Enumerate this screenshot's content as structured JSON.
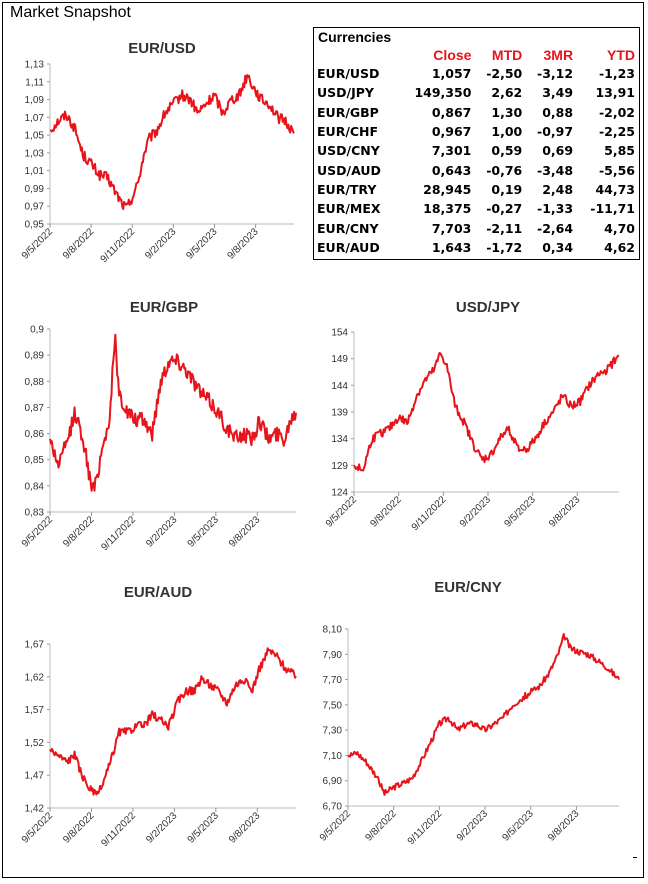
{
  "page": {
    "title": "Market Snapshot"
  },
  "table": {
    "title": "Currencies",
    "headers": [
      "Close",
      "MTD",
      "3MR",
      "YTD"
    ],
    "rows": [
      {
        "pair": "EUR/USD",
        "close": "1,057",
        "mtd": "-2,50",
        "r3m": "-3,12",
        "ytd": "-1,23"
      },
      {
        "pair": "USD/JPY",
        "close": "149,350",
        "mtd": "2,62",
        "r3m": "3,49",
        "ytd": "13,91"
      },
      {
        "pair": "EUR/GBP",
        "close": "0,867",
        "mtd": "1,30",
        "r3m": "0,88",
        "ytd": "-2,02"
      },
      {
        "pair": "EUR/CHF",
        "close": "0,967",
        "mtd": "1,00",
        "r3m": "-0,97",
        "ytd": "-2,25"
      },
      {
        "pair": "USD/CNY",
        "close": "7,301",
        "mtd": "0,59",
        "r3m": "0,69",
        "ytd": "5,85"
      },
      {
        "pair": "USD/AUD",
        "close": "0,643",
        "mtd": "-0,76",
        "r3m": "-3,48",
        "ytd": "-5,56"
      },
      {
        "pair": "EUR/TRY",
        "close": "28,945",
        "mtd": "0,19",
        "r3m": "2,48",
        "ytd": "44,73"
      },
      {
        "pair": "EUR/MEX",
        "close": "18,375",
        "mtd": "-0,27",
        "r3m": "-1,33",
        "ytd": "-11,71"
      },
      {
        "pair": "EUR/CNY",
        "close": "7,703",
        "mtd": "-2,11",
        "r3m": "-2,64",
        "ytd": "4,70"
      },
      {
        "pair": "EUR/AUD",
        "close": "1,643",
        "mtd": "-1,72",
        "r3m": "0,34",
        "ytd": "4,62"
      }
    ]
  },
  "chart_data": [
    {
      "id": "eurusd",
      "type": "line",
      "title": "EUR/USD",
      "color": "#e8141b",
      "ylim": [
        0.95,
        1.13
      ],
      "yticks": [
        "0,95",
        "0,97",
        "0,99",
        "1,01",
        "1,03",
        "1,05",
        "1,07",
        "1,09",
        "1,11",
        "1,13"
      ],
      "xticks": [
        "9/5/2022",
        "9/8/2022",
        "9/11/2022",
        "9/2/2023",
        "9/5/2023",
        "9/8/2023"
      ],
      "x_at_ticks": [
        0,
        3,
        6,
        9,
        12,
        15
      ],
      "xlim": [
        0,
        17.8
      ],
      "anchors": [
        [
          0,
          1.055
        ],
        [
          0.6,
          1.066
        ],
        [
          1.2,
          1.073
        ],
        [
          1.8,
          1.058
        ],
        [
          2.4,
          1.028
        ],
        [
          3.0,
          1.018
        ],
        [
          3.6,
          1.005
        ],
        [
          4.2,
          1.002
        ],
        [
          4.8,
          0.985
        ],
        [
          5.3,
          0.972
        ],
        [
          5.6,
          0.968
        ],
        [
          6.0,
          0.98
        ],
        [
          6.4,
          0.995
        ],
        [
          6.8,
          1.025
        ],
        [
          7.2,
          1.045
        ],
        [
          7.8,
          1.055
        ],
        [
          8.4,
          1.075
        ],
        [
          9.0,
          1.085
        ],
        [
          9.6,
          1.095
        ],
        [
          10.2,
          1.09
        ],
        [
          10.8,
          1.075
        ],
        [
          11.4,
          1.085
        ],
        [
          12.0,
          1.095
        ],
        [
          12.6,
          1.075
        ],
        [
          13.2,
          1.09
        ],
        [
          13.8,
          1.095
        ],
        [
          14.4,
          1.118
        ],
        [
          14.8,
          1.105
        ],
        [
          15.4,
          1.09
        ],
        [
          16.0,
          1.085
        ],
        [
          16.6,
          1.07
        ],
        [
          17.2,
          1.065
        ],
        [
          17.8,
          1.052
        ]
      ],
      "noise": 0.006
    },
    {
      "id": "eurgbp",
      "type": "line",
      "title": "EUR/GBP",
      "color": "#e8141b",
      "ylim": [
        0.83,
        0.9
      ],
      "yticks": [
        "0,83",
        "0,84",
        "0,85",
        "0,86",
        "0,87",
        "0,88",
        "0,89",
        "0,9"
      ],
      "xticks": [
        "9/5/2022",
        "9/8/2022",
        "9/11/2022",
        "9/2/2023",
        "9/5/2023",
        "9/8/2023"
      ],
      "x_at_ticks": [
        0,
        3,
        6,
        9,
        12,
        15
      ],
      "xlim": [
        0,
        17.8
      ],
      "anchors": [
        [
          0,
          0.858
        ],
        [
          0.6,
          0.848
        ],
        [
          1.2,
          0.856
        ],
        [
          1.8,
          0.868
        ],
        [
          2.4,
          0.858
        ],
        [
          2.9,
          0.842
        ],
        [
          3.2,
          0.838
        ],
        [
          3.8,
          0.855
        ],
        [
          4.3,
          0.865
        ],
        [
          4.7,
          0.897
        ],
        [
          5.0,
          0.875
        ],
        [
          5.6,
          0.868
        ],
        [
          6.2,
          0.865
        ],
        [
          6.8,
          0.865
        ],
        [
          7.4,
          0.86
        ],
        [
          8.0,
          0.88
        ],
        [
          8.6,
          0.888
        ],
        [
          9.2,
          0.888
        ],
        [
          9.8,
          0.885
        ],
        [
          10.4,
          0.88
        ],
        [
          11.0,
          0.875
        ],
        [
          11.6,
          0.872
        ],
        [
          12.2,
          0.868
        ],
        [
          12.8,
          0.862
        ],
        [
          13.4,
          0.858
        ],
        [
          14.0,
          0.86
        ],
        [
          14.6,
          0.858
        ],
        [
          15.2,
          0.865
        ],
        [
          15.8,
          0.858
        ],
        [
          16.4,
          0.86
        ],
        [
          17.0,
          0.858
        ],
        [
          17.4,
          0.866
        ],
        [
          17.8,
          0.868
        ]
      ],
      "noise": 0.003
    },
    {
      "id": "usdjpy",
      "type": "line",
      "title": "USD/JPY",
      "color": "#e8141b",
      "ylim": [
        124,
        154
      ],
      "yticks": [
        "124",
        "129",
        "134",
        "139",
        "144",
        "149",
        "154"
      ],
      "xticks": [
        "9/5/2022",
        "9/8/2022",
        "9/11/2022",
        "9/2/2023",
        "9/5/2023",
        "9/8/2023"
      ],
      "x_at_ticks": [
        0,
        3,
        6,
        9,
        12,
        15
      ],
      "xlim": [
        0,
        17.8
      ],
      "anchors": [
        [
          0,
          129
        ],
        [
          0.6,
          128
        ],
        [
          1.2,
          134
        ],
        [
          1.8,
          135
        ],
        [
          2.4,
          136
        ],
        [
          3.0,
          138
        ],
        [
          3.6,
          137
        ],
        [
          4.2,
          142
        ],
        [
          4.8,
          145
        ],
        [
          5.4,
          147
        ],
        [
          5.8,
          150
        ],
        [
          6.2,
          148
        ],
        [
          6.8,
          140
        ],
        [
          7.4,
          137
        ],
        [
          8.0,
          133
        ],
        [
          8.6,
          130
        ],
        [
          9.2,
          131
        ],
        [
          9.8,
          134
        ],
        [
          10.4,
          136
        ],
        [
          11.0,
          132
        ],
        [
          11.6,
          132
        ],
        [
          12.2,
          134
        ],
        [
          12.8,
          137
        ],
        [
          13.4,
          139
        ],
        [
          14.0,
          142
        ],
        [
          14.6,
          140
        ],
        [
          15.2,
          141
        ],
        [
          15.8,
          144
        ],
        [
          16.4,
          146
        ],
        [
          17.0,
          147
        ],
        [
          17.8,
          149.5
        ]
      ],
      "noise": 0.8
    },
    {
      "id": "euraud",
      "type": "line",
      "title": "EUR/AUD",
      "color": "#e8141b",
      "ylim": [
        1.42,
        1.7
      ],
      "yticks": [
        "1,42",
        "1,47",
        "1,52",
        "1,57",
        "1,62",
        "1,67"
      ],
      "xticks": [
        "9/5/2022",
        "9/8/2022",
        "9/11/2022",
        "9/2/2023",
        "9/5/2023",
        "9/8/2023"
      ],
      "x_at_ticks": [
        0,
        3,
        6,
        9,
        12,
        15
      ],
      "xlim": [
        0,
        17.8
      ],
      "anchors": [
        [
          0,
          1.52
        ],
        [
          0.6,
          1.51
        ],
        [
          1.2,
          1.5
        ],
        [
          1.8,
          1.51
        ],
        [
          2.4,
          1.47
        ],
        [
          3.0,
          1.45
        ],
        [
          3.4,
          1.44
        ],
        [
          3.8,
          1.46
        ],
        [
          4.4,
          1.5
        ],
        [
          5.0,
          1.55
        ],
        [
          5.6,
          1.55
        ],
        [
          6.2,
          1.56
        ],
        [
          6.8,
          1.56
        ],
        [
          7.4,
          1.58
        ],
        [
          8.0,
          1.57
        ],
        [
          8.6,
          1.56
        ],
        [
          9.2,
          1.6
        ],
        [
          9.8,
          1.62
        ],
        [
          10.4,
          1.62
        ],
        [
          11.0,
          1.64
        ],
        [
          11.6,
          1.63
        ],
        [
          12.2,
          1.62
        ],
        [
          12.8,
          1.6
        ],
        [
          13.4,
          1.63
        ],
        [
          14.0,
          1.64
        ],
        [
          14.6,
          1.62
        ],
        [
          15.2,
          1.66
        ],
        [
          15.8,
          1.69
        ],
        [
          16.4,
          1.68
        ],
        [
          17.0,
          1.66
        ],
        [
          17.8,
          1.645
        ]
      ],
      "noise": 0.007
    },
    {
      "id": "eurcny",
      "type": "line",
      "title": "EUR/CNY",
      "color": "#e8141b",
      "ylim": [
        6.7,
        8.1
      ],
      "yticks": [
        "6,70",
        "6,90",
        "7,10",
        "7,30",
        "7,50",
        "7,70",
        "7,90",
        "8,10"
      ],
      "xticks": [
        "9/5/2022",
        "9/8/2022",
        "9/11/2022",
        "9/2/2023",
        "9/5/2023",
        "9/8/2023"
      ],
      "x_at_ticks": [
        0,
        3,
        6,
        9,
        12,
        15
      ],
      "xlim": [
        0,
        17.8
      ],
      "anchors": [
        [
          0,
          7.1
        ],
        [
          0.6,
          7.12
        ],
        [
          1.2,
          7.05
        ],
        [
          1.8,
          6.95
        ],
        [
          2.4,
          6.8
        ],
        [
          3.0,
          6.85
        ],
        [
          3.6,
          6.88
        ],
        [
          4.2,
          6.92
        ],
        [
          4.8,
          7.05
        ],
        [
          5.4,
          7.2
        ],
        [
          6.0,
          7.35
        ],
        [
          6.6,
          7.4
        ],
        [
          7.2,
          7.3
        ],
        [
          7.8,
          7.35
        ],
        [
          8.4,
          7.35
        ],
        [
          9.0,
          7.3
        ],
        [
          9.6,
          7.35
        ],
        [
          10.2,
          7.4
        ],
        [
          10.8,
          7.5
        ],
        [
          11.4,
          7.55
        ],
        [
          12.0,
          7.6
        ],
        [
          12.6,
          7.65
        ],
        [
          13.2,
          7.75
        ],
        [
          13.8,
          7.9
        ],
        [
          14.2,
          8.05
        ],
        [
          14.6,
          7.95
        ],
        [
          15.2,
          7.92
        ],
        [
          15.8,
          7.9
        ],
        [
          16.4,
          7.85
        ],
        [
          17.0,
          7.8
        ],
        [
          17.8,
          7.7
        ]
      ],
      "noise": 0.025
    }
  ]
}
